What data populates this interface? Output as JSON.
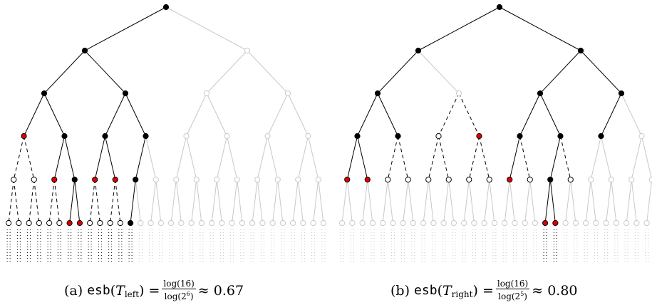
{
  "captions": {
    "a": {
      "label": "(a)",
      "func": "esb",
      "tree_letter": "T",
      "tree_sub": "left",
      "num": "log(16)",
      "den_base": "log(2",
      "den_exp": "6",
      "den_close": ")",
      "eq": "=",
      "approx": "≈ 0.67"
    },
    "b": {
      "label": "(b)",
      "func": "esb",
      "tree_letter": "T",
      "tree_sub": "right",
      "num": "log(16)",
      "den_base": "log(2",
      "den_exp": "5",
      "den_close": ")",
      "eq": "=",
      "approx": "≈ 0.80"
    }
  },
  "colors": {
    "black": "#000000",
    "red": "#e00000",
    "gray": "#c8c8c8",
    "white": "#ffffff"
  },
  "trees": {
    "left": {
      "red": [
        "LLL",
        "LLRL",
        "LRLL",
        "LRLR",
        "LLRRL",
        "LLRRR"
      ],
      "black": [
        "",
        "L",
        "LL",
        "LR",
        "LLR",
        "LLRR",
        "LRL",
        "LRR",
        "LRRL",
        "LRRLL"
      ],
      "open": [
        "LLLL",
        "LLLR",
        "LLLLL",
        "LLLLR",
        "LLLRL",
        "LLLRR",
        "LLRLL",
        "LLRLR",
        "LRLLL",
        "LRLLR",
        "LRLRL",
        "LRLRR"
      ],
      "dashed": [
        "LLLL",
        "LLLR",
        "LLLLL",
        "LLLLR",
        "LLLRL",
        "LLLRR",
        "LLRLL",
        "LLRLR",
        "LRLLL",
        "LRLLR",
        "LRLRL",
        "LRLRR"
      ]
    },
    "right": {
      "red": [
        "LRR",
        "LLLL",
        "LLLR",
        "RLLL",
        "RLRLL",
        "RLRLR"
      ],
      "black": [
        "",
        "L",
        "R",
        "LL",
        "RL",
        "RR",
        "LLL",
        "LLR",
        "RLL",
        "RLR",
        "RRL",
        "RLRL"
      ],
      "open": [
        "LRL",
        "LLRL",
        "LLRR",
        "LRLL",
        "LRLR",
        "LRRL",
        "LRRR",
        "RLLR",
        "RLRR"
      ],
      "dashed": [
        "LRL",
        "LRR",
        "LLRL",
        "LLRR",
        "LRLL",
        "LRLR",
        "LRRL",
        "LRRR",
        "RLLR",
        "RLRR"
      ]
    }
  }
}
